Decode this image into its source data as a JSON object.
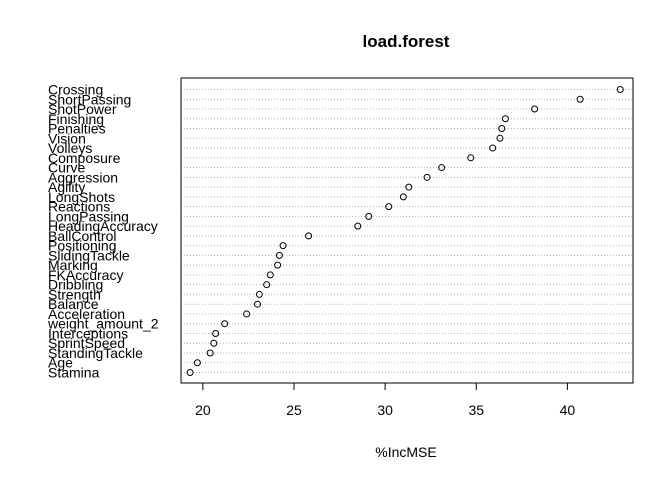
{
  "chart_data": {
    "type": "dotchart",
    "title": "load.forest",
    "xlabel": "%IncMSE",
    "ylabel": "",
    "xlim": [
      18.8,
      43.6
    ],
    "xticks": [
      20,
      25,
      30,
      35,
      40
    ],
    "grid": "dotted horizontal lines per variable",
    "categories": [
      "Crossing",
      "ShortPassing",
      "ShotPower",
      "Finishing",
      "Penalties",
      "Vision",
      "Volleys",
      "Composure",
      "Curve",
      "Aggression",
      "Agility",
      "LongShots",
      "Reactions",
      "LongPassing",
      "HeadingAccuracy",
      "BallControl",
      "Positioning",
      "SlidingTackle",
      "Marking",
      "FKAccuracy",
      "Dribbling",
      "Strength",
      "Balance",
      "Acceleration",
      "weight_amount_2",
      "Interceptions",
      "SprintSpeed",
      "StandingTackle",
      "Age",
      "Stamina"
    ],
    "values": [
      42.9,
      40.7,
      38.2,
      36.6,
      36.4,
      36.3,
      35.9,
      34.7,
      33.1,
      32.3,
      31.3,
      31.0,
      30.2,
      29.1,
      28.5,
      25.8,
      24.4,
      24.2,
      24.1,
      23.7,
      23.5,
      23.1,
      23.0,
      22.4,
      21.2,
      20.7,
      20.6,
      20.4,
      19.7,
      19.3
    ]
  }
}
